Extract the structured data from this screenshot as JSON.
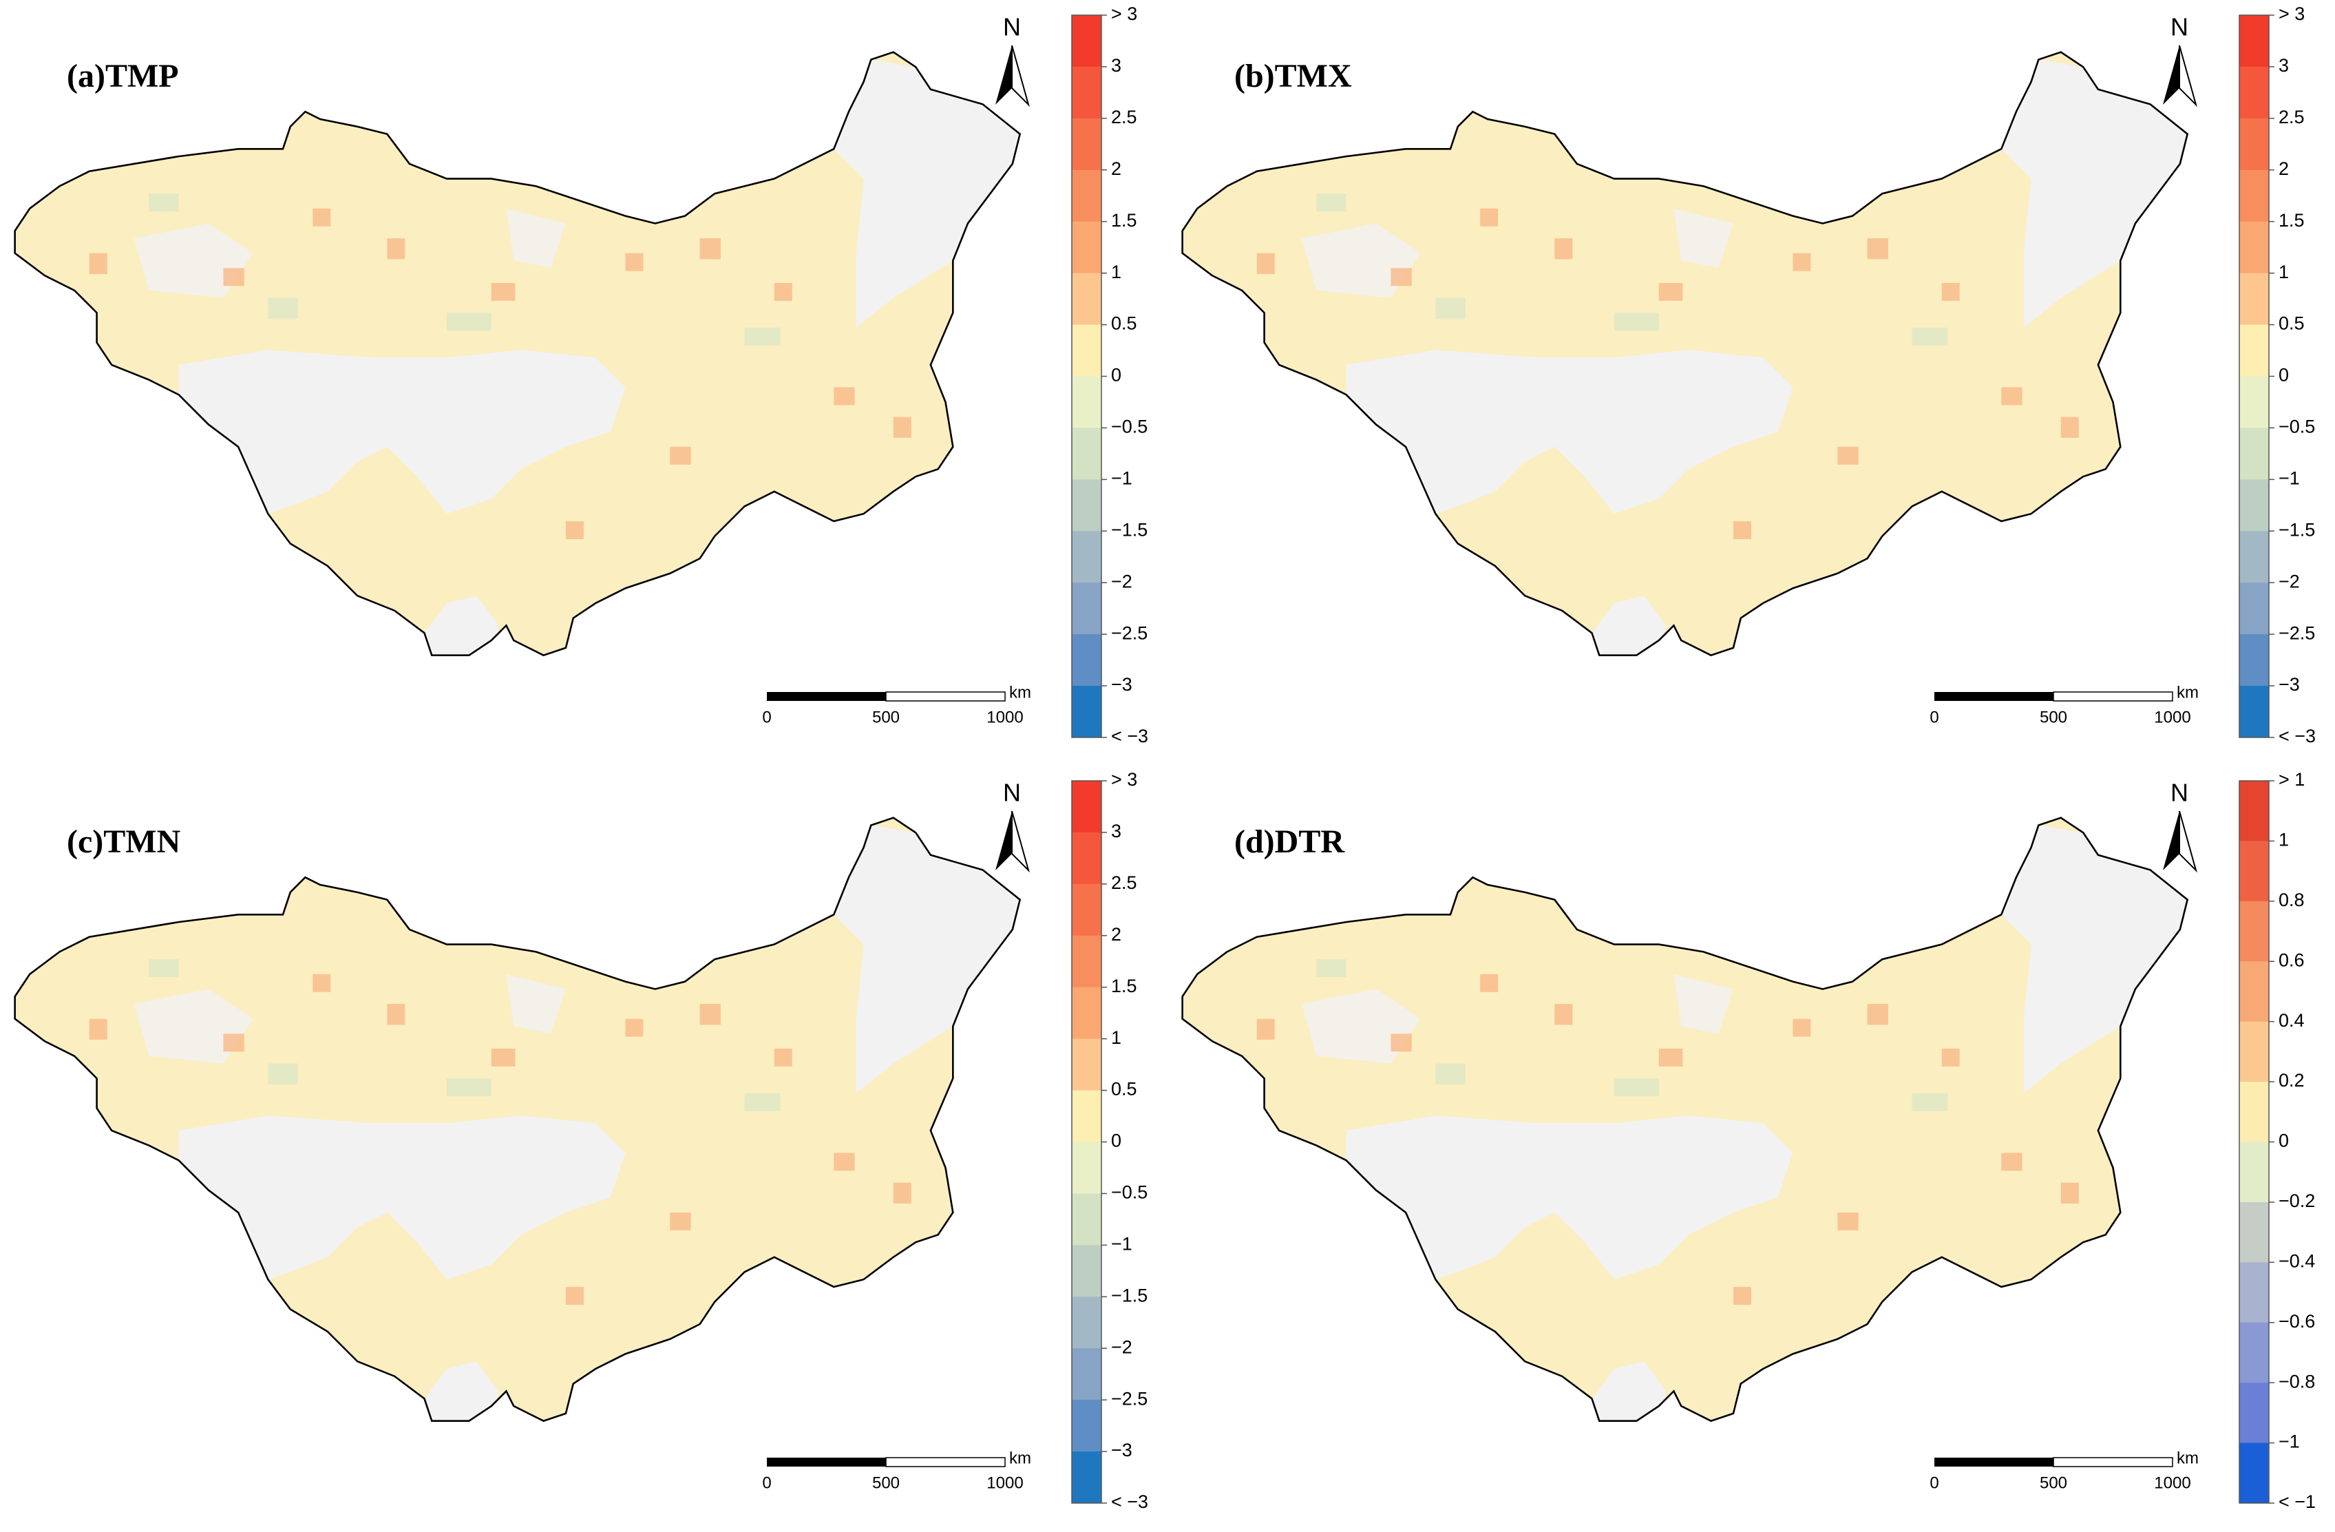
{
  "panels": [
    {
      "title": "(a)TMP",
      "north": "N",
      "legend": {
        "labels": [
          "> 3",
          "3",
          "2.5",
          "2",
          "1.5",
          "1",
          "0.5",
          "0",
          "−0.5",
          "−1",
          "−1.5",
          "−2",
          "−2.5",
          "−3",
          "< −3"
        ],
        "colors": [
          "#f23b2b",
          "#f5573c",
          "#f6724b",
          "#f88e5d",
          "#faa872",
          "#fcc68e",
          "#fdeeb2",
          "#e9f0c8",
          "#d3e2c2",
          "#bdcec3",
          "#a3b8c5",
          "#87a3c6",
          "#5f8ec4",
          "#1f77c0"
        ]
      },
      "scale_bar": {
        "labels": [
          "0",
          "500",
          "1000"
        ],
        "unit": "km"
      }
    },
    {
      "title": "(b)TMX",
      "north": "N",
      "legend": {
        "labels": [
          "> 3",
          "3",
          "2.5",
          "2",
          "1.5",
          "1",
          "0.5",
          "0",
          "−0.5",
          "−1",
          "−1.5",
          "−2",
          "−2.5",
          "−3",
          "< −3"
        ],
        "colors": [
          "#f23b2b",
          "#f5573c",
          "#f6724b",
          "#f88e5d",
          "#faa872",
          "#fcc68e",
          "#fdeeb2",
          "#e9f0c8",
          "#d3e2c2",
          "#bdcec3",
          "#a3b8c5",
          "#87a3c6",
          "#5f8ec4",
          "#1f77c0"
        ]
      },
      "scale_bar": {
        "labels": [
          "0",
          "500",
          "1000"
        ],
        "unit": "km"
      }
    },
    {
      "title": "(c)TMN",
      "north": "N",
      "legend": {
        "labels": [
          "> 3",
          "3",
          "2.5",
          "2",
          "1.5",
          "1",
          "0.5",
          "0",
          "−0.5",
          "−1",
          "−1.5",
          "−2",
          "−2.5",
          "−3",
          "< −3"
        ],
        "colors": [
          "#f23b2b",
          "#f5573c",
          "#f6724b",
          "#f88e5d",
          "#faa872",
          "#fcc68e",
          "#fdeeb2",
          "#e9f0c8",
          "#d3e2c2",
          "#bdcec3",
          "#a3b8c5",
          "#87a3c6",
          "#5f8ec4",
          "#1f77c0"
        ]
      },
      "scale_bar": {
        "labels": [
          "0",
          "500",
          "1000"
        ],
        "unit": "km"
      }
    },
    {
      "title": "(d)DTR",
      "north": "N",
      "legend": {
        "labels": [
          "> 1",
          "1",
          "0.8",
          "0.6",
          "0.4",
          "0.2",
          "0",
          "−0.2",
          "−0.4",
          "−0.6",
          "−0.8",
          "−1",
          "< −1"
        ],
        "colors": [
          "#e5452f",
          "#ee6243",
          "#f48a5e",
          "#f7a875",
          "#fbc890",
          "#fdecb0",
          "#e3ecc8",
          "#c6cdc6",
          "#a8b3cf",
          "#8a99d4",
          "#6a80d6",
          "#1b5fd6"
        ]
      },
      "scale_bar": {
        "labels": [
          "0",
          "500",
          "1000"
        ],
        "unit": "km"
      }
    }
  ]
}
